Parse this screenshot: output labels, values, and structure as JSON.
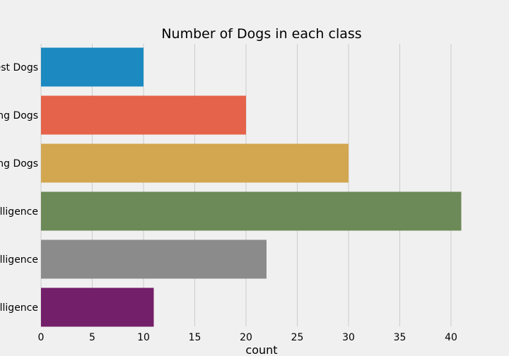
{
  "chart_data": {
    "type": "bar",
    "orientation": "horizontal",
    "title": "Number of Dogs in each class",
    "xlabel": "count",
    "ylabel": "",
    "categories": [
      "est Dogs",
      "ng Dogs",
      "ng Dogs",
      "lligence",
      "lligence",
      "lligence"
    ],
    "values": [
      10,
      20,
      30,
      41,
      22,
      11
    ],
    "colors": [
      "#1c8ac0",
      "#e5634a",
      "#d2a750",
      "#6c8a57",
      "#8b8b8b",
      "#731f69"
    ],
    "xlim": [
      0,
      42.8
    ],
    "xticks": [
      "0",
      "5",
      "10",
      "15",
      "20",
      "25",
      "30",
      "35",
      "40"
    ],
    "grid": true
  }
}
